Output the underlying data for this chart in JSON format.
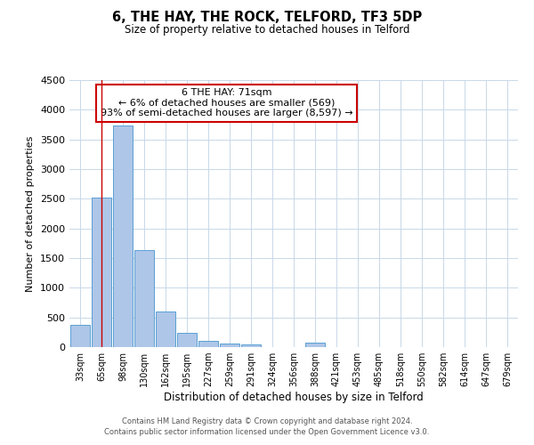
{
  "title": "6, THE HAY, THE ROCK, TELFORD, TF3 5DP",
  "subtitle": "Size of property relative to detached houses in Telford",
  "xlabel": "Distribution of detached houses by size in Telford",
  "ylabel": "Number of detached properties",
  "categories": [
    "33sqm",
    "65sqm",
    "98sqm",
    "130sqm",
    "162sqm",
    "195sqm",
    "227sqm",
    "259sqm",
    "291sqm",
    "324sqm",
    "356sqm",
    "388sqm",
    "421sqm",
    "453sqm",
    "485sqm",
    "518sqm",
    "550sqm",
    "582sqm",
    "614sqm",
    "647sqm",
    "679sqm"
  ],
  "values": [
    380,
    2520,
    3730,
    1640,
    600,
    240,
    100,
    60,
    40,
    0,
    0,
    70,
    0,
    0,
    0,
    0,
    0,
    0,
    0,
    0,
    0
  ],
  "bar_color": "#aec6e8",
  "bar_edge_color": "#5a9fd4",
  "vline_x_index": 1,
  "vline_color": "#cc0000",
  "annotation_line1": "6 THE HAY: 71sqm",
  "annotation_line2": "← 6% of detached houses are smaller (569)",
  "annotation_line3": "93% of semi-detached houses are larger (8,597) →",
  "annotation_box_color": "#ffffff",
  "annotation_box_edge": "#cc0000",
  "ylim": [
    0,
    4500
  ],
  "yticks": [
    0,
    500,
    1000,
    1500,
    2000,
    2500,
    3000,
    3500,
    4000,
    4500
  ],
  "background_color": "#ffffff",
  "grid_color": "#c8d8e8",
  "footer_line1": "Contains HM Land Registry data © Crown copyright and database right 2024.",
  "footer_line2": "Contains public sector information licensed under the Open Government Licence v3.0."
}
